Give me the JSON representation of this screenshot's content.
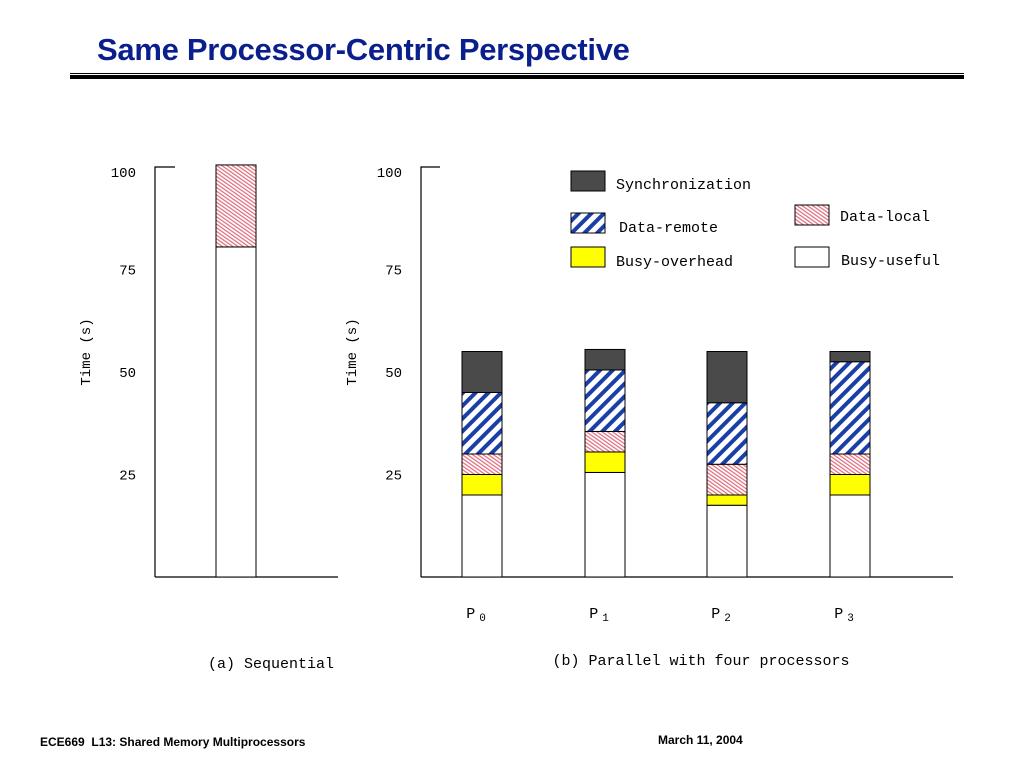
{
  "slide": {
    "title": "Same Processor-Centric Perspective",
    "footer_left": "ECE669  L13: Shared Memory Multiprocessors",
    "footer_right": "March 11, 2004"
  },
  "colors": {
    "title": "#0b1f8c",
    "synchronization": "#4a4a4a",
    "data_remote_stripe": "#1a3fa6",
    "data_local_stripe": "#e06a7a",
    "busy_overhead": "#ffff00",
    "busy_useful": "#ffffff"
  },
  "chart_data": [
    {
      "type": "bar",
      "stacked": true,
      "caption": "(a) Sequential",
      "ylabel": "Time (s)",
      "ylim": [
        0,
        100
      ],
      "yticks": [
        "100",
        "75",
        "50",
        "25"
      ],
      "categories": [
        ""
      ],
      "series": [
        {
          "name": "Busy-useful",
          "values": [
            80.5
          ]
        },
        {
          "name": "Data-local",
          "values": [
            20
          ]
        }
      ]
    },
    {
      "type": "bar",
      "stacked": true,
      "caption": "(b) Parallel with four processors",
      "ylabel": "Time (s)",
      "ylim": [
        0,
        100
      ],
      "yticks": [
        "100",
        "75",
        "50",
        "25"
      ],
      "categories": [
        {
          "base": "P",
          "sub": "0"
        },
        {
          "base": "P",
          "sub": "1"
        },
        {
          "base": "P",
          "sub": "2"
        },
        {
          "base": "P",
          "sub": "3"
        }
      ],
      "series": [
        {
          "name": "Busy-useful",
          "values": [
            20,
            25.5,
            17.5,
            20
          ]
        },
        {
          "name": "Busy-overhead",
          "values": [
            5,
            5,
            2.5,
            5
          ]
        },
        {
          "name": "Data-local",
          "values": [
            5,
            5,
            7.5,
            5
          ]
        },
        {
          "name": "Data-remote",
          "values": [
            15,
            15,
            15,
            22.5
          ]
        },
        {
          "name": "Synchronization",
          "values": [
            10,
            5,
            12.5,
            2.5
          ]
        }
      ],
      "legend": [
        {
          "label": "Synchronization",
          "key": "synchronization"
        },
        {
          "label": "Data-local",
          "key": "data_local"
        },
        {
          "label": "Data-remote",
          "key": "data_remote"
        },
        {
          "label": "Busy-overhead",
          "key": "busy_overhead"
        },
        {
          "label": "Busy-useful",
          "key": "busy_useful"
        }
      ]
    }
  ]
}
